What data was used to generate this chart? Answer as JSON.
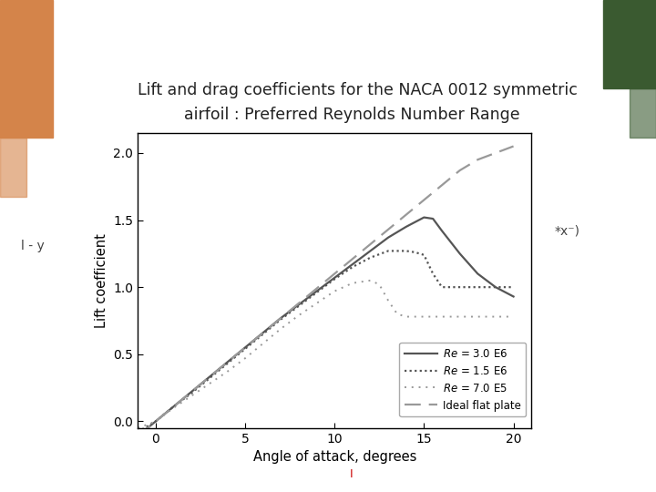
{
  "title_line1": "Lift and drag coefficients for the NACA 0012 symmetric",
  "title_line2": "airfoil : Preferred Reynolds Number Range",
  "xlabel": "Angle of attack, degrees",
  "ylabel": "Lift coefficient",
  "xlim": [
    -1,
    21
  ],
  "ylim": [
    -0.05,
    2.15
  ],
  "xticks": [
    0,
    5,
    10,
    15,
    20
  ],
  "yticks": [
    0.0,
    0.5,
    1.0,
    1.5,
    2.0
  ],
  "bg_color": "#ffffff",
  "color_main": "#555555",
  "color_light": "#999999",
  "left_label": "l - y",
  "right_label": "*x⁻)",
  "re3e6_x": [
    -1,
    0,
    1,
    2,
    3,
    4,
    5,
    6,
    7,
    8,
    9,
    10,
    11,
    12,
    13,
    14,
    15,
    15.5,
    16,
    17,
    18,
    19,
    20
  ],
  "re3e6_y": [
    -0.11,
    0.0,
    0.11,
    0.22,
    0.33,
    0.44,
    0.55,
    0.66,
    0.77,
    0.87,
    0.97,
    1.07,
    1.17,
    1.27,
    1.37,
    1.45,
    1.52,
    1.51,
    1.42,
    1.25,
    1.1,
    1.0,
    0.93
  ],
  "re15e6_x": [
    -1,
    0,
    1,
    2,
    3,
    4,
    5,
    6,
    7,
    8,
    9,
    10,
    11,
    12,
    13,
    14,
    14.5,
    15,
    15.5,
    16,
    17,
    18,
    19,
    20
  ],
  "re15e6_y": [
    -0.08,
    0.0,
    0.11,
    0.21,
    0.32,
    0.43,
    0.54,
    0.65,
    0.76,
    0.86,
    0.96,
    1.06,
    1.15,
    1.22,
    1.27,
    1.27,
    1.26,
    1.24,
    1.1,
    1.0,
    1.0,
    1.0,
    1.0,
    1.0
  ],
  "re7e5_x": [
    -1,
    0,
    1,
    2,
    3,
    4,
    5,
    6,
    7,
    8,
    9,
    10,
    11,
    12,
    12.5,
    13,
    13.5,
    14,
    15,
    16,
    17,
    18,
    19,
    20
  ],
  "re7e5_y": [
    -0.05,
    0.0,
    0.1,
    0.19,
    0.28,
    0.37,
    0.47,
    0.58,
    0.69,
    0.79,
    0.88,
    0.97,
    1.03,
    1.05,
    1.02,
    0.9,
    0.8,
    0.78,
    0.78,
    0.78,
    0.78,
    0.78,
    0.78,
    0.78
  ],
  "ideal_x": [
    -1,
    0,
    5,
    10,
    15,
    16,
    17,
    18,
    19,
    20
  ],
  "ideal_y": [
    -0.11,
    0.0,
    0.55,
    1.1,
    1.65,
    1.76,
    1.87,
    1.95,
    2.0,
    2.05
  ]
}
